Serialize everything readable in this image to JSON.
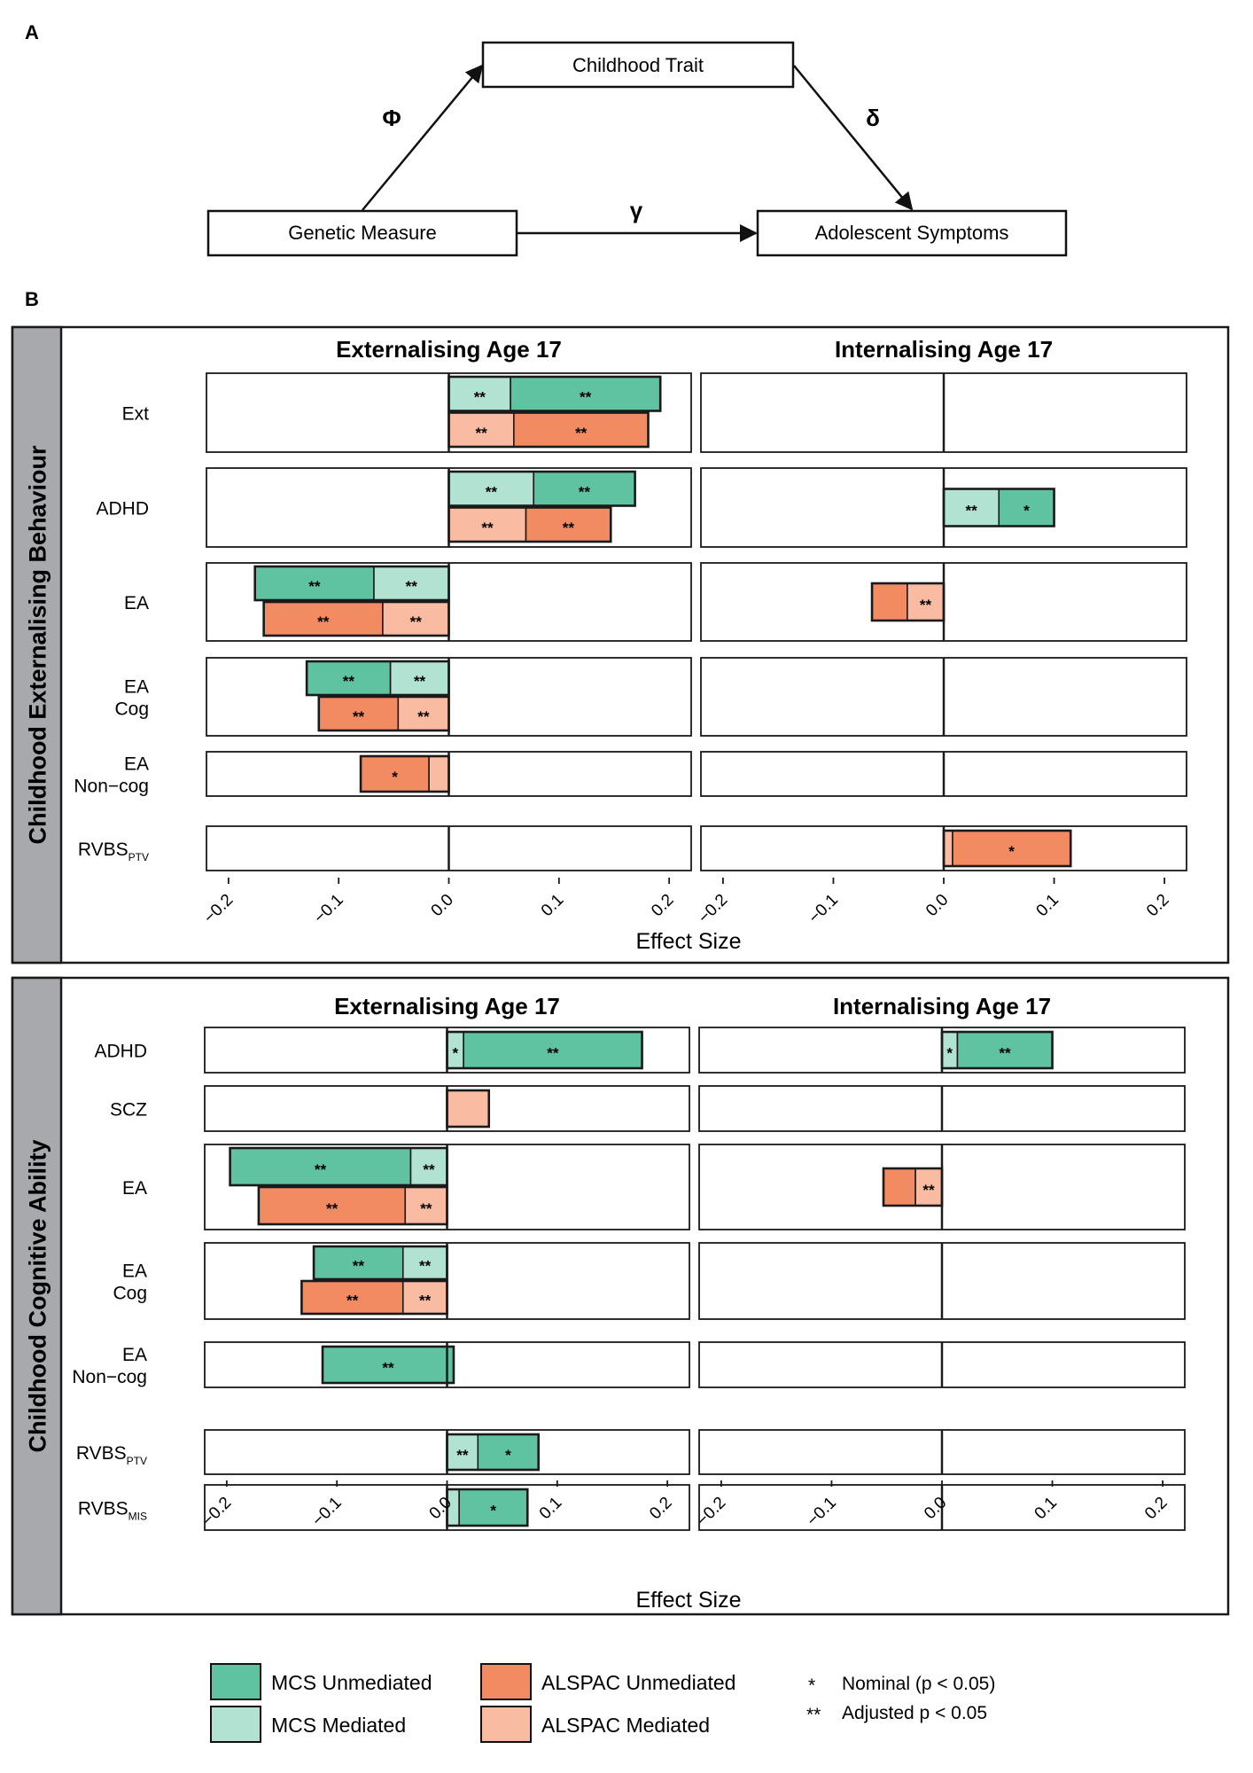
{
  "colors": {
    "mcs_unmediated": "#5fc3a1",
    "mcs_mediated": "#b2e2d2",
    "alspac_unmediated": "#f28a62",
    "alspac_mediated": "#f9bca3",
    "strip": "#a7a9ac",
    "border": "#1a1a1a"
  },
  "panel_a": {
    "label": "A",
    "boxes": {
      "trait": "Childhood Trait",
      "genetic": "Genetic Measure",
      "symptoms": "Adolescent Symptoms"
    },
    "paths": {
      "phi": "Φ",
      "delta": "δ",
      "gamma": "γ"
    }
  },
  "panel_b": {
    "label": "B"
  },
  "legend": {
    "mcs_unmediated": "MCS Unmediated",
    "mcs_mediated": "MCS Mediated",
    "alspac_unmediated": "ALSPAC Unmediated",
    "alspac_mediated": "ALSPAC Mediated",
    "nominal_sym": "*",
    "nominal": "Nominal (p < 0.05)",
    "adjusted_sym": "**",
    "adjusted": "Adjusted p < 0.05"
  },
  "chart_data": [
    {
      "type": "bar",
      "orientation": "horizontal-stacked",
      "strip_label": "Childhood Externalising Behaviour",
      "xlabel": "Effect Size",
      "xlim": [
        -0.22,
        0.22
      ],
      "xticks": [
        "−0.2",
        "−0.1",
        "0.0",
        "0.1",
        "0.2"
      ],
      "xtick_values": [
        -0.2,
        -0.1,
        0,
        0.1,
        0.2
      ],
      "panels": [
        "Externalising Age 17",
        "Internalising Age 17"
      ],
      "rows": [
        {
          "label": [
            "Ext"
          ],
          "cells": [
            [
              {
                "cohort": "MCS",
                "segments": [
                  {
                    "from": 0,
                    "to": 0.056,
                    "type": "mediated",
                    "sig": "**"
                  },
                  {
                    "from": 0.056,
                    "to": 0.192,
                    "type": "unmediated",
                    "sig": "**"
                  }
                ]
              },
              {
                "cohort": "ALSPAC",
                "segments": [
                  {
                    "from": 0,
                    "to": 0.059,
                    "type": "mediated",
                    "sig": "**"
                  },
                  {
                    "from": 0.059,
                    "to": 0.181,
                    "type": "unmediated",
                    "sig": "**"
                  }
                ]
              }
            ],
            []
          ]
        },
        {
          "label": [
            "ADHD"
          ],
          "cells": [
            [
              {
                "cohort": "MCS",
                "segments": [
                  {
                    "from": 0,
                    "to": 0.077,
                    "type": "mediated",
                    "sig": "**"
                  },
                  {
                    "from": 0.077,
                    "to": 0.169,
                    "type": "unmediated",
                    "sig": "**"
                  }
                ]
              },
              {
                "cohort": "ALSPAC",
                "segments": [
                  {
                    "from": 0,
                    "to": 0.07,
                    "type": "mediated",
                    "sig": "**"
                  },
                  {
                    "from": 0.07,
                    "to": 0.147,
                    "type": "unmediated",
                    "sig": "**"
                  }
                ]
              }
            ],
            [
              {
                "cohort": "MCS",
                "segments": [
                  {
                    "from": 0,
                    "to": 0.05,
                    "type": "mediated",
                    "sig": "**"
                  },
                  {
                    "from": 0.05,
                    "to": 0.1,
                    "type": "unmediated",
                    "sig": "*"
                  }
                ]
              }
            ]
          ]
        },
        {
          "label": [
            "EA"
          ],
          "cells": [
            [
              {
                "cohort": "MCS",
                "segments": [
                  {
                    "from": -0.176,
                    "to": -0.068,
                    "type": "unmediated",
                    "sig": "**"
                  },
                  {
                    "from": -0.068,
                    "to": 0,
                    "type": "mediated",
                    "sig": "**"
                  }
                ]
              },
              {
                "cohort": "ALSPAC",
                "segments": [
                  {
                    "from": -0.168,
                    "to": -0.06,
                    "type": "unmediated",
                    "sig": "**"
                  },
                  {
                    "from": -0.06,
                    "to": 0,
                    "type": "mediated",
                    "sig": "**"
                  }
                ]
              }
            ],
            [
              {
                "cohort": "ALSPAC",
                "segments": [
                  {
                    "from": -0.065,
                    "to": -0.033,
                    "type": "unmediated",
                    "sig": ""
                  },
                  {
                    "from": -0.033,
                    "to": 0,
                    "type": "mediated",
                    "sig": "**"
                  }
                ]
              }
            ]
          ]
        },
        {
          "label": [
            "EA",
            "Cog"
          ],
          "cells": [
            [
              {
                "cohort": "MCS",
                "segments": [
                  {
                    "from": -0.129,
                    "to": -0.053,
                    "type": "unmediated",
                    "sig": "**"
                  },
                  {
                    "from": -0.053,
                    "to": 0,
                    "type": "mediated",
                    "sig": "**"
                  }
                ]
              },
              {
                "cohort": "ALSPAC",
                "segments": [
                  {
                    "from": -0.118,
                    "to": -0.046,
                    "type": "unmediated",
                    "sig": "**"
                  },
                  {
                    "from": -0.046,
                    "to": 0,
                    "type": "mediated",
                    "sig": "**"
                  }
                ]
              }
            ],
            []
          ]
        },
        {
          "label": [
            "EA",
            "Non−cog"
          ],
          "cells": [
            [
              {
                "cohort": "ALSPAC",
                "segments": [
                  {
                    "from": -0.08,
                    "to": -0.018,
                    "type": "unmediated",
                    "sig": "*"
                  },
                  {
                    "from": -0.018,
                    "to": 0,
                    "type": "mediated",
                    "sig": ""
                  }
                ]
              }
            ],
            []
          ]
        },
        {
          "label": [
            "RVBS",
            "PTV"
          ],
          "cells": [
            [],
            [
              {
                "cohort": "ALSPAC",
                "segments": [
                  {
                    "from": 0,
                    "to": 0.008,
                    "type": "mediated",
                    "sig": ""
                  },
                  {
                    "from": 0.008,
                    "to": 0.115,
                    "type": "unmediated",
                    "sig": "*"
                  }
                ]
              }
            ]
          ]
        }
      ]
    },
    {
      "type": "bar",
      "orientation": "horizontal-stacked",
      "strip_label": "Childhood Cognitive Ability",
      "xlabel": "Effect Size",
      "xlim": [
        -0.22,
        0.22
      ],
      "xticks": [
        "−0.2",
        "−0.1",
        "0.0",
        "0.1",
        "0.2"
      ],
      "xtick_values": [
        -0.2,
        -0.1,
        0,
        0.1,
        0.2
      ],
      "panels": [
        "Externalising Age 17",
        "Internalising Age 17"
      ],
      "rows": [
        {
          "label": [
            "ADHD"
          ],
          "cells": [
            [
              {
                "cohort": "MCS",
                "segments": [
                  {
                    "from": 0,
                    "to": 0.015,
                    "type": "mediated",
                    "sig": "*"
                  },
                  {
                    "from": 0.015,
                    "to": 0.177,
                    "type": "unmediated",
                    "sig": "**"
                  }
                ]
              }
            ],
            [
              {
                "cohort": "MCS",
                "segments": [
                  {
                    "from": 0,
                    "to": 0.014,
                    "type": "mediated",
                    "sig": "*"
                  },
                  {
                    "from": 0.014,
                    "to": 0.1,
                    "type": "unmediated",
                    "sig": "**"
                  }
                ]
              }
            ]
          ]
        },
        {
          "label": [
            "SCZ"
          ],
          "cells": [
            [
              {
                "cohort": "ALSPAC",
                "segments": [
                  {
                    "from": 0,
                    "to": 0.038,
                    "type": "mediated",
                    "sig": ""
                  }
                ]
              }
            ],
            []
          ]
        },
        {
          "label": [
            "EA"
          ],
          "cells": [
            [
              {
                "cohort": "MCS",
                "segments": [
                  {
                    "from": -0.197,
                    "to": -0.033,
                    "type": "unmediated",
                    "sig": "**"
                  },
                  {
                    "from": -0.033,
                    "to": 0,
                    "type": "mediated",
                    "sig": "**"
                  }
                ]
              },
              {
                "cohort": "ALSPAC",
                "segments": [
                  {
                    "from": -0.171,
                    "to": -0.038,
                    "type": "unmediated",
                    "sig": "**"
                  },
                  {
                    "from": -0.038,
                    "to": 0,
                    "type": "mediated",
                    "sig": "**"
                  }
                ]
              }
            ],
            [
              {
                "cohort": "ALSPAC",
                "segments": [
                  {
                    "from": -0.053,
                    "to": -0.024,
                    "type": "unmediated",
                    "sig": ""
                  },
                  {
                    "from": -0.024,
                    "to": 0,
                    "type": "mediated",
                    "sig": "**"
                  }
                ]
              }
            ]
          ]
        },
        {
          "label": [
            "EA",
            "Cog"
          ],
          "cells": [
            [
              {
                "cohort": "MCS",
                "segments": [
                  {
                    "from": -0.121,
                    "to": -0.04,
                    "type": "unmediated",
                    "sig": "**"
                  },
                  {
                    "from": -0.04,
                    "to": 0,
                    "type": "mediated",
                    "sig": "**"
                  }
                ]
              },
              {
                "cohort": "ALSPAC",
                "segments": [
                  {
                    "from": -0.132,
                    "to": -0.04,
                    "type": "unmediated",
                    "sig": "**"
                  },
                  {
                    "from": -0.04,
                    "to": 0,
                    "type": "mediated",
                    "sig": "**"
                  }
                ]
              }
            ],
            []
          ]
        },
        {
          "label": [
            "EA",
            "Non−cog"
          ],
          "cells": [
            [
              {
                "cohort": "MCS",
                "segments": [
                  {
                    "from": -0.113,
                    "to": 0.006,
                    "type": "unmediated",
                    "sig": "**"
                  }
                ]
              }
            ],
            []
          ]
        },
        {
          "label": [
            "RVBS",
            "PTV"
          ],
          "cells": [
            [
              {
                "cohort": "MCS",
                "segments": [
                  {
                    "from": 0,
                    "to": 0.028,
                    "type": "mediated",
                    "sig": "**"
                  },
                  {
                    "from": 0.028,
                    "to": 0.083,
                    "type": "unmediated",
                    "sig": "*"
                  }
                ]
              }
            ],
            []
          ]
        },
        {
          "label": [
            "RVBS",
            "MIS"
          ],
          "cells": [
            [
              {
                "cohort": "MCS",
                "segments": [
                  {
                    "from": 0,
                    "to": 0.011,
                    "type": "mediated",
                    "sig": ""
                  },
                  {
                    "from": 0.011,
                    "to": 0.073,
                    "type": "unmediated",
                    "sig": "*"
                  }
                ]
              }
            ],
            []
          ]
        }
      ]
    }
  ]
}
